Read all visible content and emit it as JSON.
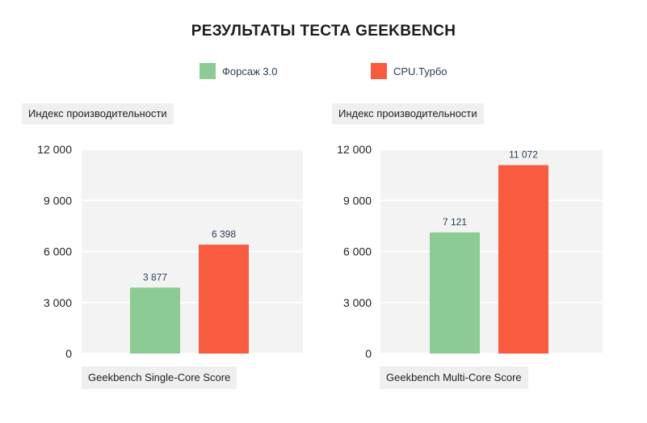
{
  "title": "РЕЗУЛЬТАТЫ ТЕСТА GEEKBENCH",
  "legend": [
    {
      "label": "Форсаж 3.0",
      "color": "#8ccc94"
    },
    {
      "label": "CPU.Турбо",
      "color": "#f85b3f"
    }
  ],
  "chart_data": [
    {
      "type": "bar",
      "title": "",
      "ylabel": "Индекс производительности",
      "xlabel": "Geekbench Single-Core Score",
      "ylim": [
        0,
        12000
      ],
      "yticks": [
        0,
        3000,
        6000,
        9000,
        12000
      ],
      "ytick_labels": [
        "0",
        "3 000",
        "6 000",
        "9 000",
        "12 000"
      ],
      "grid": true,
      "series": [
        {
          "name": "Форсаж 3.0",
          "color": "#8ccc94",
          "value": 3877,
          "label": "3 877"
        },
        {
          "name": "CPU.Турбо",
          "color": "#f85b3f",
          "value": 6398,
          "label": "6 398"
        }
      ]
    },
    {
      "type": "bar",
      "title": "",
      "ylabel": "Индекс производительности",
      "xlabel": "Geekbench Multi-Core Score",
      "ylim": [
        0,
        12000
      ],
      "yticks": [
        0,
        3000,
        6000,
        9000,
        12000
      ],
      "ytick_labels": [
        "0",
        "3 000",
        "6 000",
        "9 000",
        "12 000"
      ],
      "grid": true,
      "series": [
        {
          "name": "Форсаж 3.0",
          "color": "#8ccc94",
          "value": 7121,
          "label": "7 121"
        },
        {
          "name": "CPU.Турбо",
          "color": "#f85b3f",
          "value": 11072,
          "label": "11 072"
        }
      ]
    }
  ]
}
